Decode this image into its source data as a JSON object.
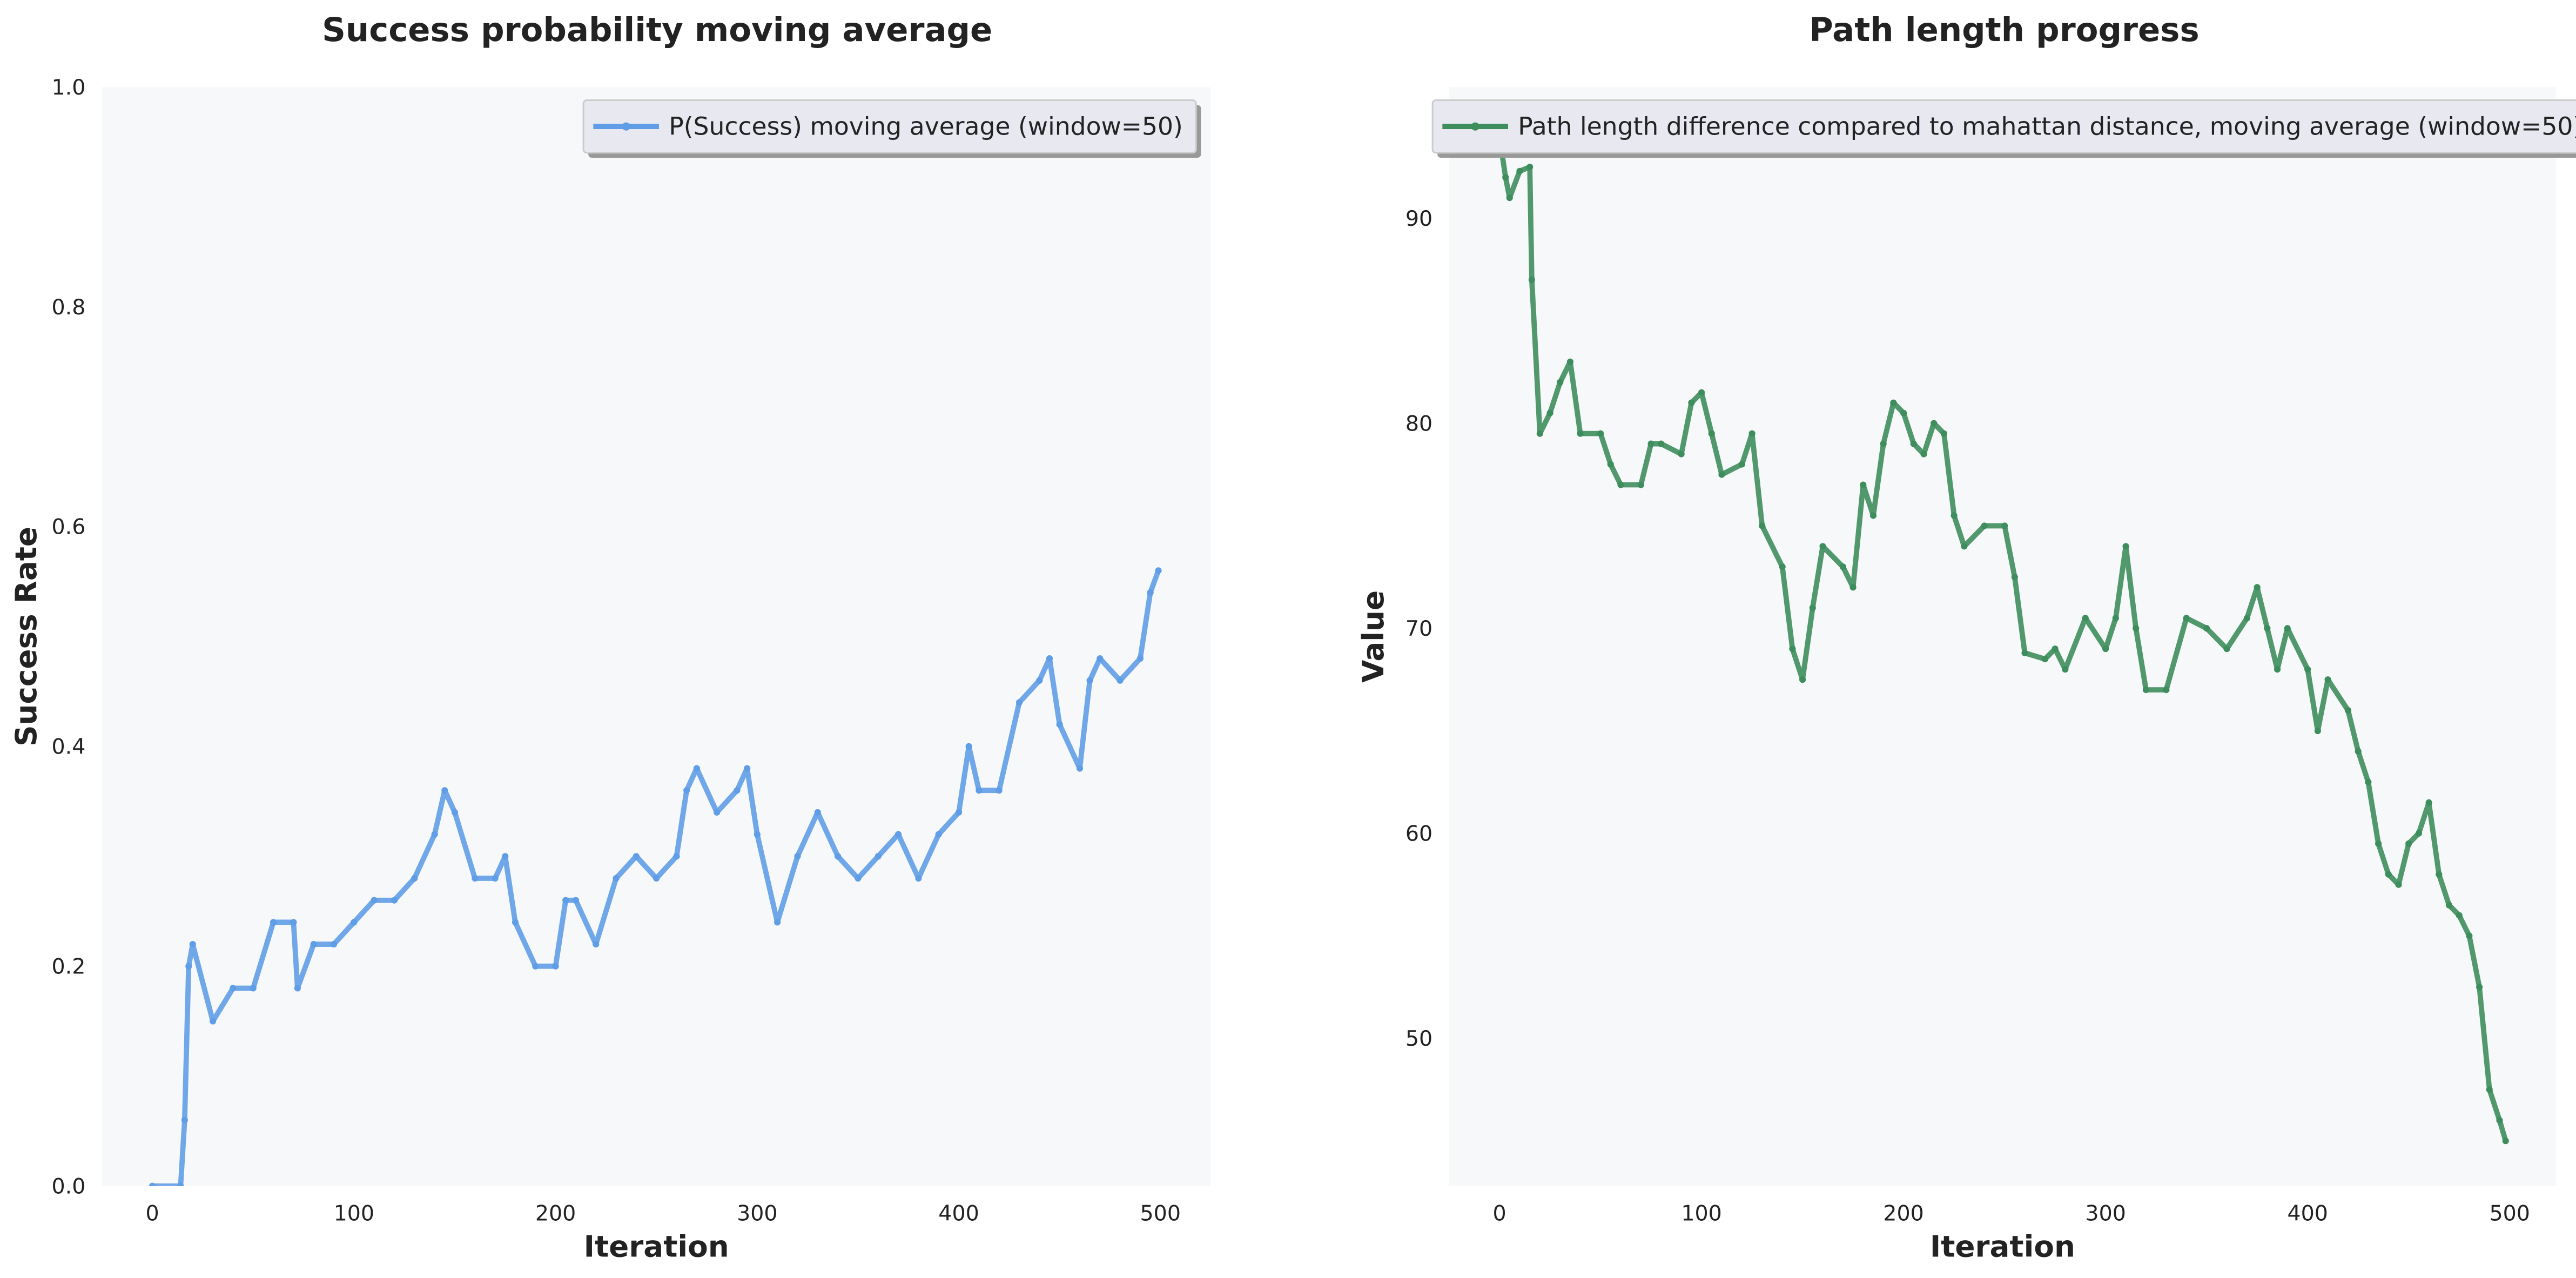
{
  "chart_data": [
    {
      "type": "line",
      "title": "Success probability moving average",
      "xlabel": "Iteration",
      "ylabel": "Success Rate",
      "x": [
        0,
        14,
        16,
        18,
        20,
        30,
        40,
        50,
        60,
        70,
        72,
        80,
        90,
        100,
        110,
        120,
        130,
        140,
        145,
        150,
        160,
        170,
        175,
        180,
        190,
        200,
        205,
        210,
        220,
        230,
        240,
        250,
        260,
        265,
        270,
        280,
        290,
        295,
        300,
        310,
        320,
        330,
        340,
        350,
        360,
        370,
        380,
        390,
        400,
        405,
        410,
        420,
        430,
        440,
        445,
        450,
        460,
        465,
        470,
        480,
        490,
        495,
        499
      ],
      "series": [
        {
          "name": "P(Success) moving average (window=50)",
          "color": "#5f9de6",
          "values": [
            0,
            0,
            0.06,
            0.2,
            0.22,
            0.15,
            0.18,
            0.18,
            0.24,
            0.24,
            0.18,
            0.22,
            0.22,
            0.24,
            0.26,
            0.26,
            0.28,
            0.32,
            0.36,
            0.34,
            0.28,
            0.28,
            0.3,
            0.24,
            0.2,
            0.2,
            0.26,
            0.26,
            0.22,
            0.28,
            0.3,
            0.28,
            0.3,
            0.36,
            0.38,
            0.34,
            0.36,
            0.38,
            0.32,
            0.24,
            0.3,
            0.34,
            0.3,
            0.28,
            0.3,
            0.32,
            0.28,
            0.32,
            0.34,
            0.4,
            0.36,
            0.36,
            0.44,
            0.46,
            0.48,
            0.42,
            0.38,
            0.46,
            0.48,
            0.46,
            0.48,
            0.54,
            0.56
          ]
        }
      ],
      "xlim": [
        -25,
        525
      ],
      "xticks": [
        0,
        100,
        200,
        300,
        400,
        500
      ],
      "ylim": [
        0,
        1
      ],
      "yticks": [
        {
          "value": 0,
          "label": "0.0"
        },
        0.2,
        0.4,
        0.6,
        0.8,
        {
          "value": 1,
          "label": "1.0"
        }
      ],
      "grid": false,
      "legend": "upper right"
    },
    {
      "type": "line",
      "title": "Path length progress",
      "xlabel": "Iteration",
      "ylabel": "Value",
      "x": [
        0,
        3,
        5,
        10,
        15,
        16,
        20,
        25,
        30,
        35,
        40,
        50,
        55,
        60,
        70,
        75,
        80,
        90,
        95,
        100,
        105,
        110,
        120,
        125,
        130,
        140,
        145,
        150,
        155,
        160,
        170,
        175,
        180,
        185,
        190,
        195,
        200,
        205,
        210,
        215,
        220,
        225,
        230,
        240,
        250,
        255,
        260,
        270,
        275,
        280,
        290,
        300,
        305,
        310,
        315,
        320,
        330,
        340,
        350,
        360,
        370,
        375,
        380,
        385,
        390,
        400,
        405,
        410,
        420,
        425,
        430,
        435,
        440,
        445,
        450,
        455,
        460,
        465,
        470,
        475,
        480,
        485,
        490,
        495,
        498
      ],
      "series": [
        {
          "name": "Path length difference compared to mahattan distance, moving average (window=50)",
          "color": "#3e8d5d",
          "values": [
            94,
            92,
            91,
            92.3,
            92.5,
            87,
            79.5,
            80.5,
            82,
            83,
            79.5,
            79.5,
            78,
            77,
            77,
            79,
            79,
            78.5,
            81,
            81.5,
            79.5,
            77.5,
            78,
            79.5,
            75,
            73,
            69,
            67.5,
            71,
            74,
            73,
            72,
            77,
            75.5,
            79,
            81,
            80.5,
            79,
            78.5,
            80,
            79.5,
            75.5,
            74,
            75,
            75,
            72.5,
            68.8,
            68.5,
            69,
            68,
            70.5,
            69,
            70.5,
            74,
            70,
            67,
            67,
            70.5,
            70,
            69,
            70.5,
            72,
            70,
            68,
            70,
            68,
            65,
            67.5,
            66,
            64,
            62.5,
            59.5,
            58,
            57.5,
            59.5,
            60,
            61.5,
            58,
            56.5,
            56,
            55,
            52.5,
            47.5,
            46,
            45
          ]
        }
      ],
      "xlim": [
        -25,
        523
      ],
      "xticks": [
        0,
        100,
        200,
        300,
        400,
        500
      ],
      "ylim": [
        42.8,
        96.4
      ],
      "yticks": [
        50,
        60,
        70,
        80,
        90
      ],
      "grid": false,
      "legend": "upper left"
    }
  ]
}
